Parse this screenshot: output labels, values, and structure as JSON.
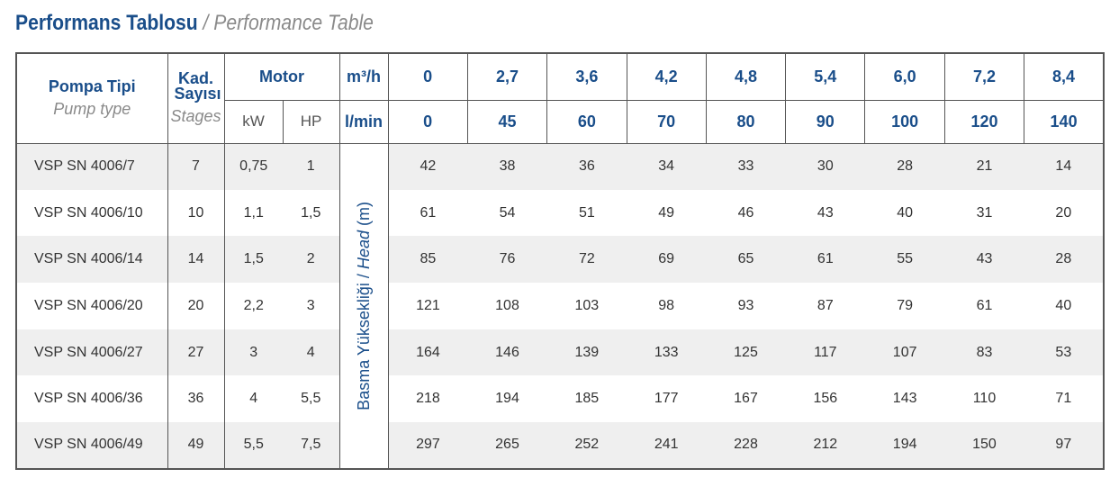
{
  "header": {
    "title_tr": "Performans Tablosu",
    "separator": "/",
    "title_en": "Performance Table"
  },
  "table": {
    "columns": {
      "pump_type_tr": "Pompa Tipi",
      "pump_type_en": "Pump type",
      "stages_tr": "Kad. Sayısı",
      "stages_en": "Stages",
      "motor": "Motor",
      "kw": "kW",
      "hp": "HP",
      "flow_unit_m3h": "m³/h",
      "flow_unit_lmin": "l/min",
      "head_label_tr": "Basma Yüksekliği",
      "head_separator": "/",
      "head_label_en": "Head",
      "head_unit": "(m)"
    },
    "flow_m3h": [
      0,
      "2,7",
      "3,6",
      "4,2",
      "4,8",
      "5,4",
      "6,0",
      "7,2",
      "8,4"
    ],
    "flow_lmin": [
      0,
      45,
      60,
      70,
      80,
      90,
      100,
      120,
      140
    ],
    "rows": [
      {
        "model": "VSP SN 4006/7",
        "stages": 7,
        "kw": "0,75",
        "hp": 1,
        "head": [
          42,
          38,
          36,
          34,
          33,
          30,
          28,
          21,
          14
        ]
      },
      {
        "model": "VSP SN 4006/10",
        "stages": 10,
        "kw": "1,1",
        "hp": "1,5",
        "head": [
          61,
          54,
          51,
          49,
          46,
          43,
          40,
          31,
          20
        ]
      },
      {
        "model": "VSP SN 4006/14",
        "stages": 14,
        "kw": "1,5",
        "hp": 2,
        "head": [
          85,
          76,
          72,
          69,
          65,
          61,
          55,
          43,
          28
        ]
      },
      {
        "model": "VSP SN 4006/20",
        "stages": 20,
        "kw": "2,2",
        "hp": 3,
        "head": [
          121,
          108,
          103,
          98,
          93,
          87,
          79,
          61,
          40
        ]
      },
      {
        "model": "VSP SN 4006/27",
        "stages": 27,
        "kw": 3,
        "hp": 4,
        "head": [
          164,
          146,
          139,
          133,
          125,
          117,
          107,
          83,
          53
        ]
      },
      {
        "model": "VSP SN 4006/36",
        "stages": 36,
        "kw": 4,
        "hp": "5,5",
        "head": [
          218,
          194,
          185,
          177,
          167,
          156,
          143,
          110,
          71
        ]
      },
      {
        "model": "VSP SN 4006/49",
        "stages": 49,
        "kw": "5,5",
        "hp": "7,5",
        "head": [
          297,
          265,
          252,
          241,
          228,
          212,
          194,
          150,
          97
        ]
      }
    ]
  }
}
